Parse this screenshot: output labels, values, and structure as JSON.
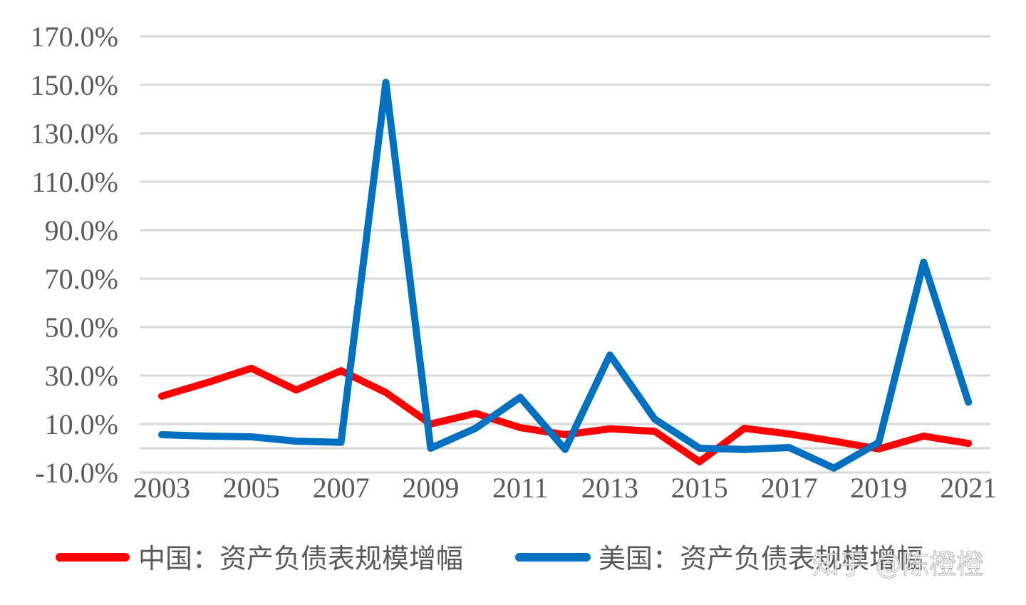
{
  "chart_data": {
    "type": "line",
    "title": "",
    "xlabel": "",
    "ylabel": "",
    "x": [
      2003,
      2004,
      2005,
      2006,
      2007,
      2008,
      2009,
      2010,
      2011,
      2012,
      2013,
      2014,
      2015,
      2016,
      2017,
      2018,
      2019,
      2020,
      2021
    ],
    "x_tick_labels": [
      "2003",
      "2005",
      "2007",
      "2009",
      "2011",
      "2013",
      "2015",
      "2017",
      "2019",
      "2021"
    ],
    "y_tick_labels": [
      "170.0%",
      "150.0%",
      "130.0%",
      "110.0%",
      "90.0%",
      "70.0%",
      "50.0%",
      "30.0%",
      "10.0%",
      "-10.0%"
    ],
    "y_ticks": [
      170,
      150,
      130,
      110,
      90,
      70,
      50,
      30,
      10,
      -10
    ],
    "ylim": [
      -10,
      170
    ],
    "grid": true,
    "legend_position": "bottom",
    "series": [
      {
        "name": "中国：资产负债表规模增幅",
        "color": "#ff0000",
        "values": [
          21.5,
          27.0,
          33.0,
          24.0,
          32.0,
          23.0,
          10.0,
          14.4,
          8.5,
          5.6,
          8.0,
          7.0,
          -5.6,
          8.2,
          5.9,
          2.9,
          -0.3,
          5.0,
          2.0
        ]
      },
      {
        "name": "美国：资产负债表规模增幅",
        "color": "#0070c0",
        "values": [
          5.6,
          5.0,
          4.7,
          2.9,
          2.4,
          151.0,
          0.0,
          8.2,
          21.0,
          -0.5,
          38.5,
          12.0,
          0.0,
          -0.5,
          0.3,
          -8.2,
          2.4,
          76.8,
          19.0
        ]
      }
    ]
  },
  "legend": {
    "items": [
      {
        "label": "中国：资产负债表规模增幅",
        "color": "#ff0000"
      },
      {
        "label": "美国：资产负债表规模增幅",
        "color": "#0070c0"
      }
    ]
  },
  "watermark": "知乎 @陈橙橙"
}
